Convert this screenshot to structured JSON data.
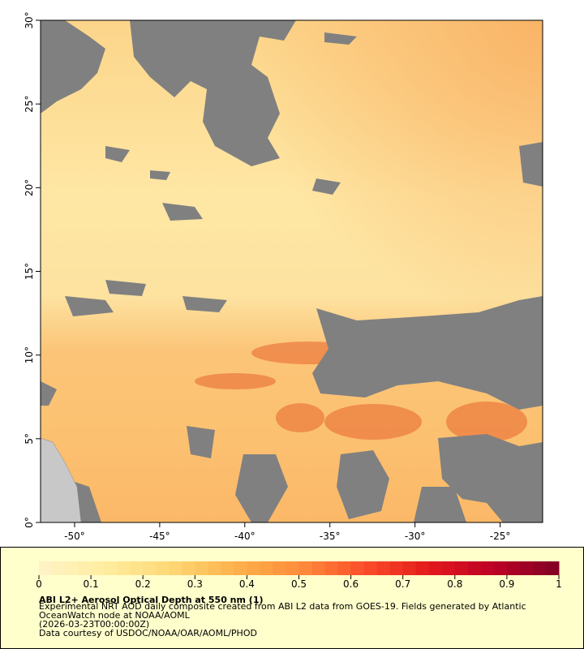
{
  "map": {
    "xlim": [
      -52,
      -22.5
    ],
    "ylim": [
      0,
      30
    ],
    "xticks": [
      {
        "value": -50,
        "label": "-50°"
      },
      {
        "value": -45,
        "label": "-45°"
      },
      {
        "value": -40,
        "label": "-40°"
      },
      {
        "value": -35,
        "label": "-35°"
      },
      {
        "value": -30,
        "label": "-30°"
      },
      {
        "value": -25,
        "label": "-25°"
      }
    ],
    "yticks": [
      {
        "value": 0,
        "label": "0°"
      },
      {
        "value": 5,
        "label": "5°"
      },
      {
        "value": 10,
        "label": "10°"
      },
      {
        "value": 15,
        "label": "15°"
      },
      {
        "value": 20,
        "label": "20°"
      },
      {
        "value": 25,
        "label": "25°"
      },
      {
        "value": 30,
        "label": "30°"
      }
    ]
  },
  "colorbar": {
    "range": [
      0,
      1
    ],
    "ticks": [
      0,
      0.1,
      0.2,
      0.3,
      0.4,
      0.5,
      0.6,
      0.7,
      0.8,
      0.9,
      1
    ],
    "colors": [
      "#fff3c8",
      "#ffeda0",
      "#fed976",
      "#feb24c",
      "#fd8d3c",
      "#fc4e2a",
      "#e31a1c",
      "#bd0026",
      "#800026"
    ]
  },
  "legend": {
    "title": "ABI L2+ Aerosol Optical Depth at 550 nm (1)",
    "description": "Experimental NRT AOD daily composite created from ABI L2 data from GOES-19. Fields generated by Atlantic OceanWatch node at NOAA/AOML",
    "time": "(2026-03-23T00:00:00Z)",
    "credit": "Data courtesy of USDOC/NOAA/OAR/AOML/PHOD"
  }
}
